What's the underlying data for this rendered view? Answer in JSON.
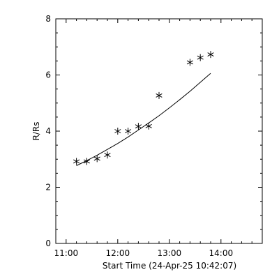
{
  "chart_data": {
    "type": "scatter",
    "xlabel": "Start Time (24-Apr-25 10:42:07)",
    "ylabel": "R/Rs",
    "x_tick_labels": [
      "11:00",
      "12:00",
      "13:00",
      "14:00"
    ],
    "x_tick_values": [
      "11:00",
      "12:00",
      "13:00",
      "14:00"
    ],
    "xlim": [
      "10:48",
      "14:48"
    ],
    "ylim": [
      0,
      8
    ],
    "y_tick_values": [
      0,
      2,
      4,
      6,
      8
    ],
    "y_tick_labels": [
      "0",
      "2",
      "4",
      "6",
      "8"
    ],
    "grid": false,
    "marker": "asterisk",
    "series": [
      {
        "x": [
          "11:12",
          "11:24",
          "11:36",
          "11:48",
          "12:00",
          "12:12",
          "12:24",
          "12:36",
          "12:48",
          "13:24",
          "13:36",
          "13:48"
        ],
        "y": [
          2.92,
          2.92,
          3.02,
          3.15,
          4.0,
          4.0,
          4.17,
          4.18,
          5.27,
          6.45,
          6.62,
          6.73
        ]
      }
    ],
    "fit_line": {
      "x": [
        "11:12",
        "11:24",
        "11:36",
        "11:48",
        "12:00",
        "12:12",
        "12:24",
        "12:36",
        "12:48",
        "13:00",
        "13:12",
        "13:24",
        "13:36",
        "13:48"
      ],
      "y": [
        2.77,
        2.95,
        3.14,
        3.35,
        3.56,
        3.79,
        4.04,
        4.29,
        4.55,
        4.83,
        5.12,
        5.42,
        5.74,
        6.06
      ]
    }
  }
}
